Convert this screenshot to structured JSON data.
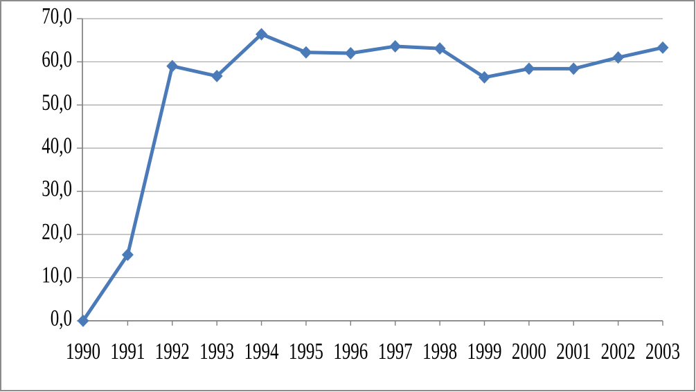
{
  "chart_data": {
    "type": "line",
    "title": "",
    "xlabel": "",
    "ylabel": "",
    "categories": [
      "1990",
      "1991",
      "1992",
      "1993",
      "1994",
      "1995",
      "1996",
      "1997",
      "1998",
      "1999",
      "2000",
      "2001",
      "2002",
      "2003"
    ],
    "series": [
      {
        "marker": "diamond",
        "values": [
          0.0,
          15.3,
          59.0,
          56.7,
          66.4,
          62.2,
          62.0,
          63.6,
          63.1,
          56.4,
          58.4,
          58.4,
          61.0,
          63.3
        ]
      }
    ],
    "ylim": [
      0,
      70
    ],
    "ytick_step": 10,
    "ytick_labels": [
      "0,0",
      "10,0",
      "20,0",
      "30,0",
      "40,0",
      "50,0",
      "60,0",
      "70,0"
    ],
    "number_format": "decimal-comma",
    "grid": true,
    "legend_position": "none"
  },
  "style": {
    "background": "#ffffff",
    "border_color": "#8c8c8c",
    "axis_color": "#7f7f7f",
    "tick_color": "#7f7f7f",
    "gridline_color": "#a6a6a6",
    "text_color": "#000000",
    "series_color": "#4a7ab8"
  }
}
